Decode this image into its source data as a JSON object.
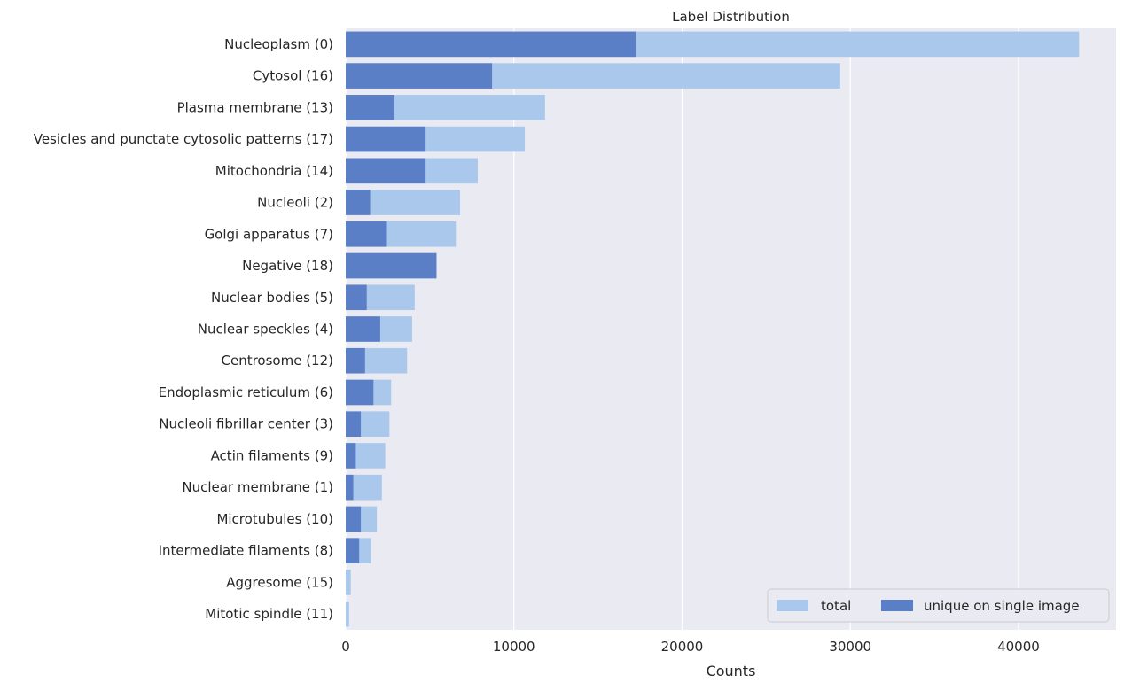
{
  "chart_data": {
    "type": "bar",
    "orientation": "horizontal",
    "title": "Label Distribution",
    "xlabel": "Counts",
    "ylabel": "",
    "xlim": [
      0,
      45800
    ],
    "xticks": [
      0,
      10000,
      20000,
      30000,
      40000
    ],
    "grid": true,
    "legend_position": "bottom-right",
    "categories": [
      "Nucleoplasm (0)",
      "Cytosol (16)",
      "Plasma membrane (13)",
      "Vesicles and punctate cytosolic patterns (17)",
      "Mitochondria (14)",
      "Nucleoli (2)",
      "Golgi apparatus (7)",
      "Negative (18)",
      "Nuclear bodies (5)",
      "Nuclear speckles (4)",
      "Centrosome (12)",
      "Endoplasmic reticulum (6)",
      "Nucleoli fibrillar center (3)",
      "Actin filaments (9)",
      "Nuclear membrane (1)",
      "Microtubules (10)",
      "Intermediate filaments (8)",
      "Aggresome (15)",
      "Mitotic spindle (11)"
    ],
    "series": [
      {
        "name": "total",
        "color": "#a9c8ec",
        "values": [
          43600,
          29400,
          11850,
          10650,
          7850,
          6800,
          6550,
          5400,
          4100,
          3950,
          3650,
          2700,
          2600,
          2350,
          2150,
          1850,
          1500,
          300,
          200
        ]
      },
      {
        "name": "unique on single image",
        "color": "#5b7fc7",
        "values": [
          17250,
          8700,
          2900,
          4750,
          4750,
          1450,
          2450,
          5400,
          1250,
          2050,
          1150,
          1650,
          900,
          600,
          450,
          900,
          800,
          0,
          0
        ]
      }
    ]
  },
  "colors": {
    "plot_background": "#eaeaf2",
    "grid": "#ffffff",
    "total": "#a9c8ec",
    "unique": "#5b7fc7"
  }
}
